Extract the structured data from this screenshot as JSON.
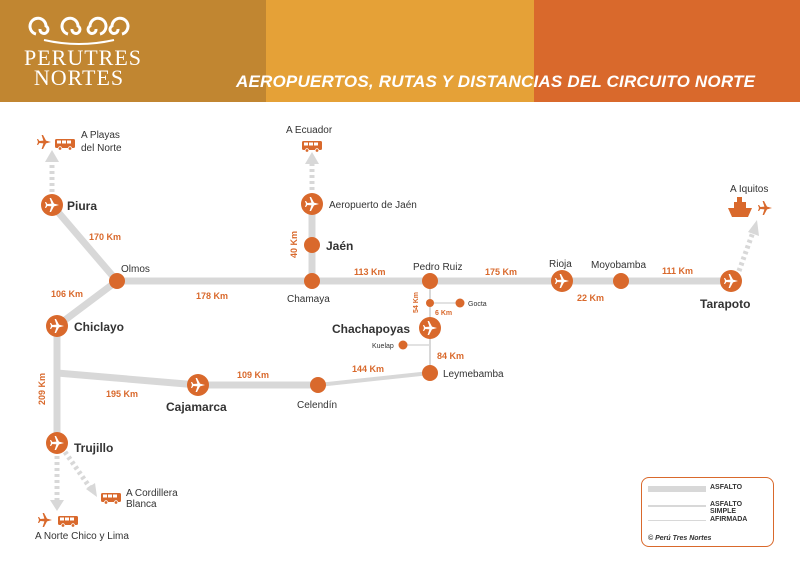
{
  "header": {
    "logo": {
      "line1": "PERUTRES",
      "line2": "NORTES"
    },
    "title": "AEROPUERTOS, RUTAS Y DISTANCIAS DEL CIRCUITO NORTE",
    "colors": {
      "band1": "#c18631",
      "band2": "#e5a137",
      "band3": "#d9692c"
    }
  },
  "map": {
    "colors": {
      "accent": "#d9692c",
      "road": "#d8d8d8",
      "text": "#333333"
    },
    "cities": {
      "piura": "Piura",
      "olmos": "Olmos",
      "chiclayo": "Chiclayo",
      "trujillo": "Trujillo",
      "cajamarca": "Cajamarca",
      "celendin": "Celendín",
      "chamaya": "Chamaya",
      "jaen": "Jaén",
      "aeropuerto_jaen": "Aeropuerto de Jaén",
      "pedro_ruiz": "Pedro Ruiz",
      "gocta": "Gocta",
      "chachapoyas": "Chachapoyas",
      "kuelap": "Kuelap",
      "leymebamba": "Leymebamba",
      "rioja": "Rioja",
      "moyobamba": "Moyobamba",
      "tarapoto": "Tarapoto"
    },
    "destinations": {
      "playas_l1": "A Playas",
      "playas_l2": "del Norte",
      "ecuador": "A Ecuador",
      "iquitos": "A Iquitos",
      "cordillera_l1": "A Cordillera",
      "cordillera_l2": "Blanca",
      "norte_chico": "A Norte Chico y Lima"
    },
    "distances": {
      "piura_olmos": "170 Km",
      "olmos_chiclayo": "106 Km",
      "olmos_chamaya": "178 Km",
      "jaen_chamaya": "40 Km",
      "chamaya_pedroruiz": "113 Km",
      "pedroruiz_rioja": "175 Km",
      "rioja_moyobamba": "22 Km",
      "moyobamba_tarapoto": "111 Km",
      "pedroruiz_gocta": "54 Km",
      "gocta_chachapoyas": "6 Km",
      "chachapoyas_leymebamba": "84 Km",
      "leymebamba_celendin": "144 Km",
      "celendin_cajamarca": "109 Km",
      "cajamarca_chiclayo": "195 Km",
      "chiclayo_trujillo": "209 Km"
    },
    "icons": {
      "airport": "airplane-icon",
      "bus": "bus-icon",
      "ship": "ship-icon",
      "node": "city-node-icon"
    }
  },
  "legend": {
    "asfalto": "ASFALTO",
    "asfalto_simple": "ASFALTO SIMPLE",
    "afirmada": "AFIRMADA",
    "copyright": "© Perú Tres Nortes"
  }
}
